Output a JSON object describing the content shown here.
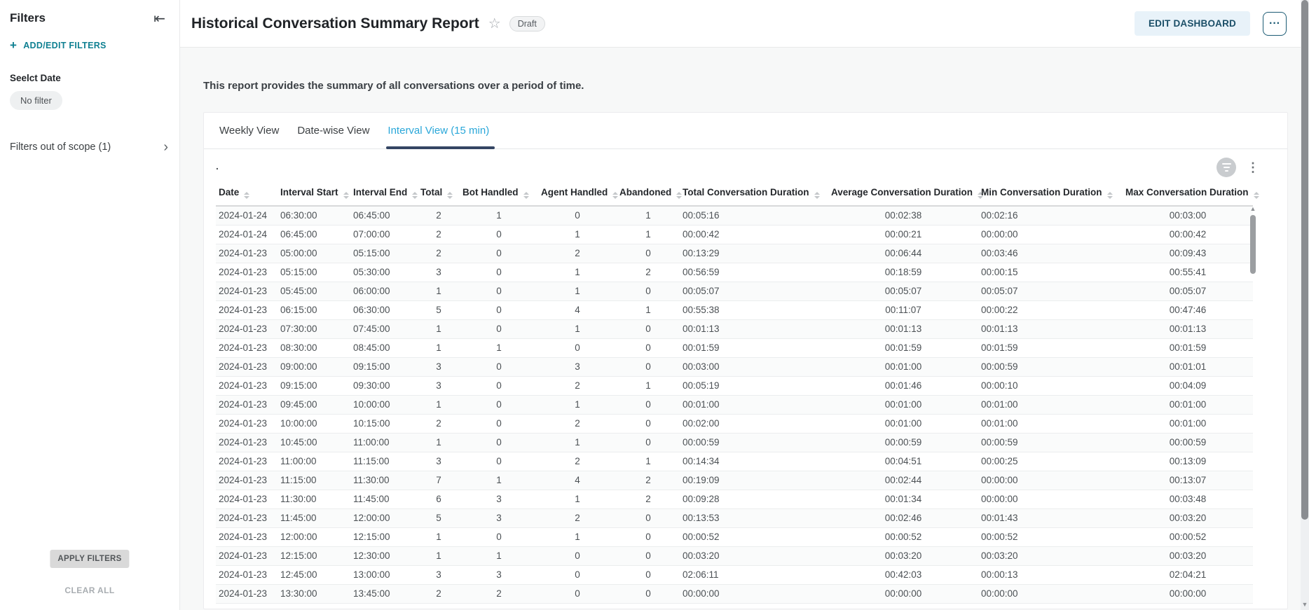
{
  "sidebar": {
    "title": "Filters",
    "collapse_icon": "⇤",
    "plus_icon": "+",
    "add_edit_filters": "ADD/EDIT FILTERS",
    "filter_group_label": "Seelct Date",
    "filter_chip": "No filter",
    "out_of_scope": "Filters out of scope (1)",
    "chevron_icon": "›",
    "apply_button": "APPLY FILTERS",
    "clear_all_button": "CLEAR ALL"
  },
  "header": {
    "title": "Historical Conversation Summary Report",
    "star_icon": "☆",
    "status_badge": "Draft",
    "edit_dashboard_button": "EDIT DASHBOARD",
    "more_button": "···"
  },
  "report": {
    "description": "This report provides the summary of all conversations over a period of time.",
    "tabs": [
      {
        "label": "Weekly View",
        "active": false
      },
      {
        "label": "Date-wise View",
        "active": false
      },
      {
        "label": "Interval View (15 min)",
        "active": true
      }
    ],
    "widget_title": ".",
    "kebab_icon": "⋮"
  },
  "table": {
    "columns": [
      "Date",
      "Interval Start",
      "Interval End",
      "Total",
      "Bot Handled",
      "Agent Handled",
      "Abandoned",
      "Total Conversation Duration",
      "Average Conversation Duration",
      "Min Conversation Duration",
      "Max Conversation Duration"
    ],
    "rows": [
      [
        "2024-01-24",
        "06:30:00",
        "06:45:00",
        "2",
        "1",
        "0",
        "1",
        "00:05:16",
        "00:02:38",
        "00:02:16",
        "00:03:00"
      ],
      [
        "2024-01-24",
        "06:45:00",
        "07:00:00",
        "2",
        "0",
        "1",
        "1",
        "00:00:42",
        "00:00:21",
        "00:00:00",
        "00:00:42"
      ],
      [
        "2024-01-23",
        "05:00:00",
        "05:15:00",
        "2",
        "0",
        "2",
        "0",
        "00:13:29",
        "00:06:44",
        "00:03:46",
        "00:09:43"
      ],
      [
        "2024-01-23",
        "05:15:00",
        "05:30:00",
        "3",
        "0",
        "1",
        "2",
        "00:56:59",
        "00:18:59",
        "00:00:15",
        "00:55:41"
      ],
      [
        "2024-01-23",
        "05:45:00",
        "06:00:00",
        "1",
        "0",
        "1",
        "0",
        "00:05:07",
        "00:05:07",
        "00:05:07",
        "00:05:07"
      ],
      [
        "2024-01-23",
        "06:15:00",
        "06:30:00",
        "5",
        "0",
        "4",
        "1",
        "00:55:38",
        "00:11:07",
        "00:00:22",
        "00:47:46"
      ],
      [
        "2024-01-23",
        "07:30:00",
        "07:45:00",
        "1",
        "0",
        "1",
        "0",
        "00:01:13",
        "00:01:13",
        "00:01:13",
        "00:01:13"
      ],
      [
        "2024-01-23",
        "08:30:00",
        "08:45:00",
        "1",
        "1",
        "0",
        "0",
        "00:01:59",
        "00:01:59",
        "00:01:59",
        "00:01:59"
      ],
      [
        "2024-01-23",
        "09:00:00",
        "09:15:00",
        "3",
        "0",
        "3",
        "0",
        "00:03:00",
        "00:01:00",
        "00:00:59",
        "00:01:01"
      ],
      [
        "2024-01-23",
        "09:15:00",
        "09:30:00",
        "3",
        "0",
        "2",
        "1",
        "00:05:19",
        "00:01:46",
        "00:00:10",
        "00:04:09"
      ],
      [
        "2024-01-23",
        "09:45:00",
        "10:00:00",
        "1",
        "0",
        "1",
        "0",
        "00:01:00",
        "00:01:00",
        "00:01:00",
        "00:01:00"
      ],
      [
        "2024-01-23",
        "10:00:00",
        "10:15:00",
        "2",
        "0",
        "2",
        "0",
        "00:02:00",
        "00:01:00",
        "00:01:00",
        "00:01:00"
      ],
      [
        "2024-01-23",
        "10:45:00",
        "11:00:00",
        "1",
        "0",
        "1",
        "0",
        "00:00:59",
        "00:00:59",
        "00:00:59",
        "00:00:59"
      ],
      [
        "2024-01-23",
        "11:00:00",
        "11:15:00",
        "3",
        "0",
        "2",
        "1",
        "00:14:34",
        "00:04:51",
        "00:00:25",
        "00:13:09"
      ],
      [
        "2024-01-23",
        "11:15:00",
        "11:30:00",
        "7",
        "1",
        "4",
        "2",
        "00:19:09",
        "00:02:44",
        "00:00:00",
        "00:13:07"
      ],
      [
        "2024-01-23",
        "11:30:00",
        "11:45:00",
        "6",
        "3",
        "1",
        "2",
        "00:09:28",
        "00:01:34",
        "00:00:00",
        "00:03:48"
      ],
      [
        "2024-01-23",
        "11:45:00",
        "12:00:00",
        "5",
        "3",
        "2",
        "0",
        "00:13:53",
        "00:02:46",
        "00:01:43",
        "00:03:20"
      ],
      [
        "2024-01-23",
        "12:00:00",
        "12:15:00",
        "1",
        "0",
        "1",
        "0",
        "00:00:52",
        "00:00:52",
        "00:00:52",
        "00:00:52"
      ],
      [
        "2024-01-23",
        "12:15:00",
        "12:30:00",
        "1",
        "1",
        "0",
        "0",
        "00:03:20",
        "00:03:20",
        "00:03:20",
        "00:03:20"
      ],
      [
        "2024-01-23",
        "12:45:00",
        "13:00:00",
        "3",
        "3",
        "0",
        "0",
        "02:06:11",
        "00:42:03",
        "00:00:13",
        "02:04:21"
      ],
      [
        "2024-01-23",
        "13:30:00",
        "13:45:00",
        "2",
        "2",
        "0",
        "0",
        "00:00:00",
        "00:00:00",
        "00:00:00",
        "00:00:00"
      ]
    ]
  },
  "colors": {
    "accent_teal": "#0f8092",
    "active_tab_text": "#2aa7d9",
    "active_tab_underline": "#344563",
    "edit_button_bg": "#e8f2f9",
    "edit_button_text": "#1b4f68",
    "page_background": "#f7f8f8"
  }
}
